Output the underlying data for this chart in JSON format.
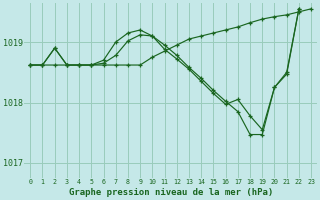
{
  "xlabel": "Graphe pression niveau de la mer (hPa)",
  "bg_color": "#c5e8e8",
  "grid_color": "#99ccbb",
  "line_color": "#1a6620",
  "ylim": [
    1016.75,
    1019.65
  ],
  "yticks": [
    1017,
    1018,
    1019
  ],
  "xticks": [
    0,
    1,
    2,
    3,
    4,
    5,
    6,
    7,
    8,
    9,
    10,
    11,
    12,
    13,
    14,
    15,
    16,
    17,
    18,
    19,
    20,
    21,
    22,
    23
  ],
  "series1_x": [
    0,
    1,
    2,
    3,
    4,
    5,
    6,
    7,
    8,
    9,
    10,
    11,
    12,
    13,
    14,
    15,
    16,
    17,
    18,
    19,
    20,
    21,
    22,
    23
  ],
  "series1_y": [
    1018.62,
    1018.62,
    1018.62,
    1018.62,
    1018.62,
    1018.62,
    1018.62,
    1018.62,
    1018.62,
    1018.62,
    1018.75,
    1018.85,
    1018.95,
    1019.05,
    1019.1,
    1019.15,
    1019.2,
    1019.25,
    1019.32,
    1019.38,
    1019.42,
    1019.45,
    1019.5,
    1019.55
  ],
  "series2_x": [
    0,
    1,
    2,
    3,
    4,
    5,
    6,
    7,
    8,
    9,
    10,
    11,
    12,
    13,
    14,
    15,
    16,
    17,
    18,
    19,
    20,
    21,
    22,
    23
  ],
  "series2_y": [
    1018.62,
    1018.62,
    1018.9,
    1018.62,
    1018.62,
    1018.62,
    1018.7,
    1019.0,
    1019.15,
    1019.2,
    1019.1,
    1018.88,
    1018.72,
    1018.55,
    1018.35,
    1018.15,
    1017.97,
    1018.05,
    1017.78,
    1017.55,
    1018.25,
    1018.47,
    1019.55,
    null
  ],
  "series3_x": [
    0,
    1,
    2,
    3,
    4,
    5,
    6,
    7,
    8,
    9,
    10,
    11,
    12,
    13,
    14,
    15,
    16,
    17,
    18,
    19,
    20,
    21,
    22,
    23
  ],
  "series3_y": [
    1018.62,
    1018.62,
    1018.9,
    1018.62,
    1018.62,
    1018.62,
    1018.65,
    1018.78,
    1019.02,
    1019.12,
    1019.1,
    1018.95,
    1018.78,
    1018.58,
    1018.4,
    1018.2,
    1018.02,
    1017.85,
    1017.47,
    1017.47,
    1018.25,
    1018.5,
    1019.55,
    null
  ]
}
